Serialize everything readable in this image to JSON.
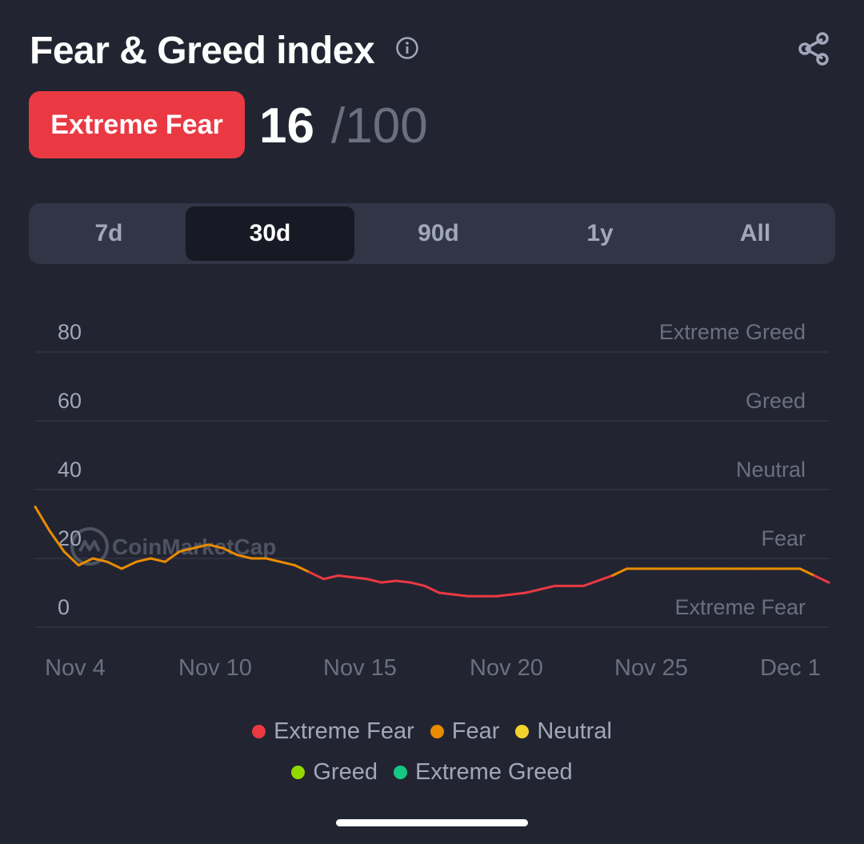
{
  "header": {
    "title": "Fear & Greed index",
    "info_icon": "info-icon",
    "share_icon": "share-icon"
  },
  "status": {
    "label": "Extreme Fear",
    "value": "16",
    "max": "/100",
    "color": "#ea3943"
  },
  "tabs": [
    {
      "label": "7d",
      "active": false
    },
    {
      "label": "30d",
      "active": true
    },
    {
      "label": "90d",
      "active": false
    },
    {
      "label": "1y",
      "active": false
    },
    {
      "label": "All",
      "active": false
    }
  ],
  "watermark": "CoinMarketCap",
  "chart_data": {
    "type": "line",
    "y_ticks": [
      "80",
      "60",
      "40",
      "20",
      "0"
    ],
    "zone_labels": [
      "Extreme Greed",
      "Greed",
      "Neutral",
      "Fear",
      "Extreme Fear"
    ],
    "x_tick_labels": [
      "Nov 4",
      "Nov 10",
      "Nov 15",
      "Nov 20",
      "Nov 25",
      "Dec 1"
    ],
    "ylim": [
      -5,
      85
    ],
    "grid": true,
    "series": [
      {
        "values": [
          35,
          28,
          22,
          18,
          20,
          19,
          17,
          19,
          20,
          19,
          22,
          23,
          24,
          23,
          21,
          20,
          20,
          19,
          18,
          16,
          14,
          15,
          14.5,
          14,
          13,
          13.5,
          13,
          12,
          10,
          9.5,
          9,
          9,
          9,
          9.5,
          10,
          11,
          12,
          12,
          12,
          13.5,
          15,
          17,
          17,
          17,
          17,
          17,
          17,
          17,
          17,
          17,
          17,
          17,
          17,
          17,
          15,
          13
        ]
      }
    ],
    "zone_colors": {
      "extreme_fear": "#ea3943",
      "fear": "#ea8c00",
      "neutral": "#f3d42f",
      "greed": "#93d900",
      "extreme_greed": "#16c784"
    }
  },
  "legend": [
    {
      "label": "Extreme Fear",
      "color": "#ea3943"
    },
    {
      "label": "Fear",
      "color": "#ea8c00"
    },
    {
      "label": "Neutral",
      "color": "#f3d42f"
    },
    {
      "label": "Greed",
      "color": "#93d900"
    },
    {
      "label": "Extreme Greed",
      "color": "#16c784"
    }
  ]
}
